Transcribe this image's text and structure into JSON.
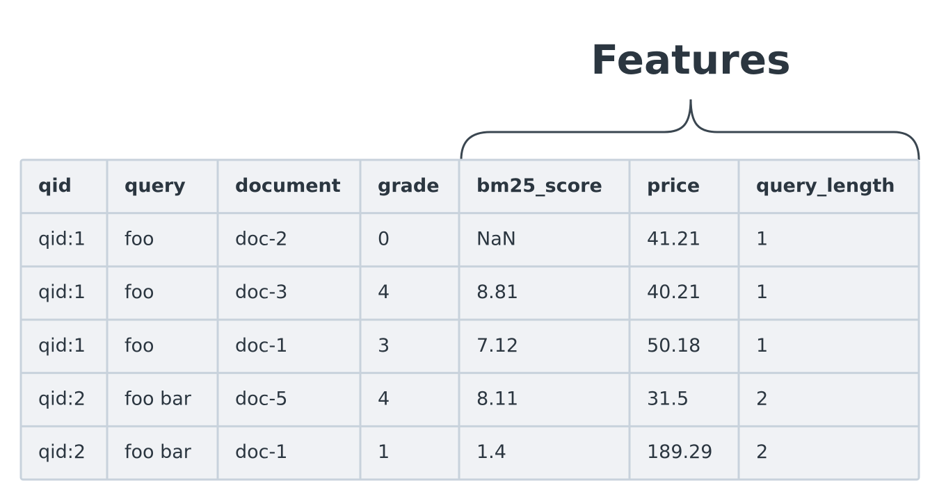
{
  "header": {
    "title": "Features"
  },
  "table": {
    "columns": [
      "qid",
      "query",
      "document",
      "grade",
      "bm25_score",
      "price",
      "query_length"
    ],
    "rows": [
      [
        "qid:1",
        "foo",
        "doc-2",
        "0",
        "NaN",
        "41.21",
        "1"
      ],
      [
        "qid:1",
        "foo",
        "doc-3",
        "4",
        "8.81",
        "40.21",
        "1"
      ],
      [
        "qid:1",
        "foo",
        "doc-1",
        "3",
        "7.12",
        "50.18",
        "1"
      ],
      [
        "qid:2",
        "foo bar",
        "doc-5",
        "4",
        "8.11",
        "31.5",
        "2"
      ],
      [
        "qid:2",
        "foo bar",
        "doc-1",
        "1",
        "1.4",
        "189.29",
        "2"
      ]
    ]
  }
}
